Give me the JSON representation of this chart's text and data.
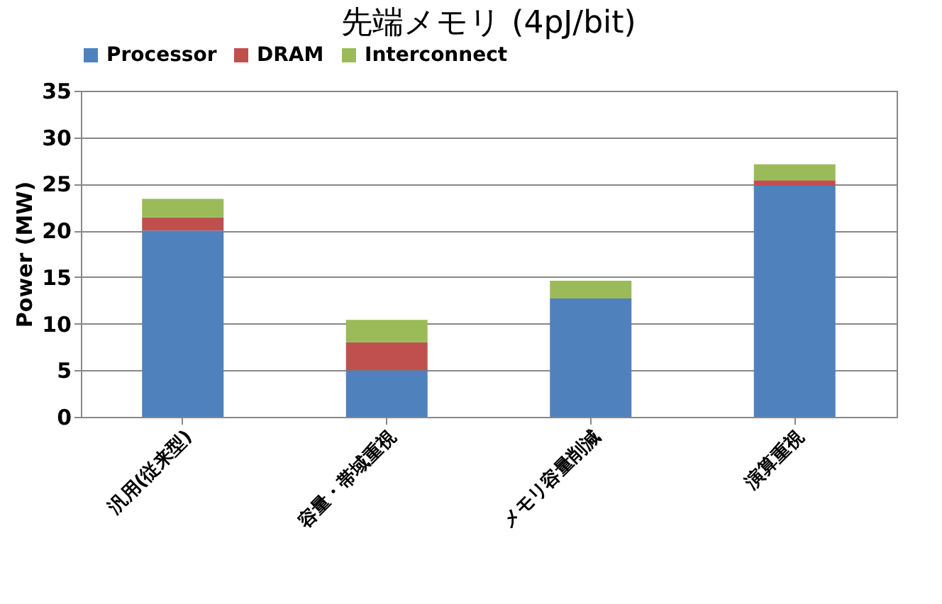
{
  "chart_data": {
    "type": "bar",
    "title": "先端メモリ (4pJ/bit)",
    "ylabel": "Power (MW)",
    "stacked": true,
    "categories": [
      "汎用(従来型)",
      "容量・帯域重視",
      "メモリ容量削減",
      "演算重視"
    ],
    "series": [
      {
        "name": "Processor",
        "color": "#4f81bd",
        "values": [
          20,
          5,
          12.7,
          24.8
        ]
      },
      {
        "name": "DRAM",
        "color": "#c0504d",
        "values": [
          1.4,
          3,
          0,
          0.6
        ]
      },
      {
        "name": "Interconnect",
        "color": "#9bbb59",
        "values": [
          2.0,
          2.4,
          1.9,
          1.7
        ]
      }
    ],
    "ylim": [
      0,
      35
    ],
    "yticks": [
      0,
      5,
      10,
      15,
      20,
      25,
      30,
      35
    ],
    "grid": "y",
    "legend": "top"
  }
}
